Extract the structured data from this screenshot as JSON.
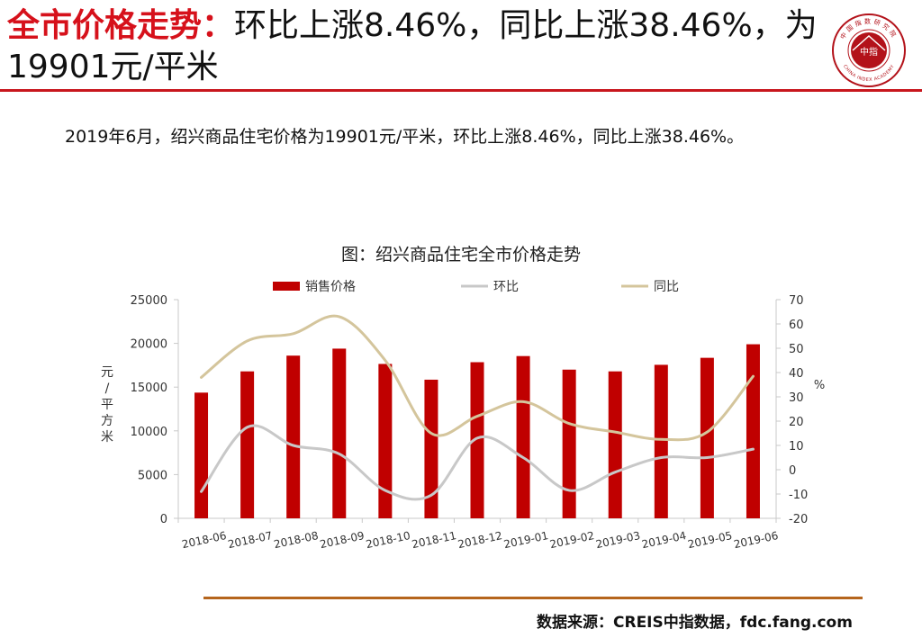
{
  "header": {
    "title_highlight": "全市价格走势：",
    "title_rest": "环比上涨8.46%，同比上涨38.46%，为19901元/平米",
    "logo_text_top": "中国指数研究院",
    "logo_center": "中指",
    "logo_text_bottom": "CHINA INDEX ACADEMY"
  },
  "summary": "2019年6月，绍兴商品住宅价格为19901元/平米，环比上涨8.46%，同比上涨38.46%。",
  "chart_caption": "图：绍兴商品住宅全市价格走势",
  "footer": {
    "source": "数据来源：CREIS中指数据，fdc.fang.com"
  },
  "colors": {
    "accent": "#c8161d",
    "bar": "#c00000",
    "mom_line": "#c8c8c8",
    "yoy_line": "#d4c59c",
    "bottom_rule": "#b5651d"
  },
  "chart_data": {
    "type": "bar",
    "title": "图：绍兴商品住宅全市价格走势",
    "categories": [
      "2018-06",
      "2018-07",
      "2018-08",
      "2018-09",
      "2018-10",
      "2018-11",
      "2018-12",
      "2019-01",
      "2019-02",
      "2019-03",
      "2019-04",
      "2019-05",
      "2019-06"
    ],
    "series": [
      {
        "name": "销售价格",
        "type": "bar",
        "axis": "left",
        "values": [
          14370,
          16800,
          18600,
          19400,
          17650,
          15850,
          17850,
          18550,
          17000,
          16800,
          17550,
          18350,
          19901
        ]
      },
      {
        "name": "环比",
        "type": "line",
        "axis": "right",
        "values": [
          -9,
          17.5,
          10,
          6.5,
          -8.5,
          -10.5,
          13,
          5,
          -8.5,
          -1,
          5,
          5,
          8.46
        ]
      },
      {
        "name": "同比",
        "type": "line",
        "axis": "right",
        "values": [
          38,
          53,
          56,
          63,
          45,
          15,
          22,
          28,
          19,
          15.5,
          12.5,
          15.5,
          38.46
        ]
      }
    ],
    "left_axis": {
      "label": "元/平方米",
      "min": 0,
      "max": 25000,
      "ticks": [
        0,
        5000,
        10000,
        15000,
        20000,
        25000
      ]
    },
    "right_axis": {
      "label": "%",
      "min": -20,
      "max": 70,
      "ticks": [
        -20,
        -10,
        0,
        10,
        20,
        30,
        40,
        50,
        60,
        70
      ]
    },
    "legend_position": "top",
    "grid": false
  }
}
